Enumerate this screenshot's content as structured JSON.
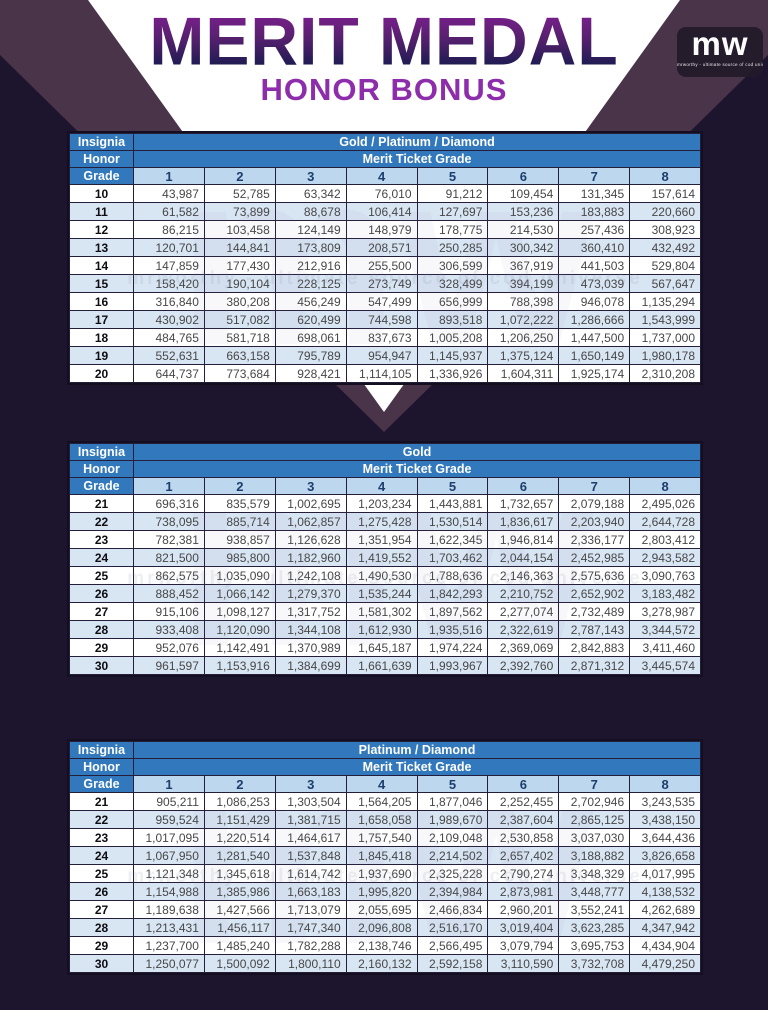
{
  "header": {
    "title": "MERIT MEDAL",
    "subtitle": "HONOR BONUS",
    "logo_text": "mw",
    "logo_tagline": "mrworthy - ultimate source of cod universe"
  },
  "labels": {
    "insignia": "Insignia",
    "honor": "Honor",
    "grade": "Grade",
    "merit_ticket_grade": "Merit Ticket Grade",
    "ticket_grades": [
      "1",
      "2",
      "3",
      "4",
      "5",
      "6",
      "7",
      "8"
    ]
  },
  "colors": {
    "page_background": "#1d142e",
    "corner_band": "#4a3449",
    "header_blue": "#3278bc",
    "column_header_blue": "#bdd7ee",
    "stripe_blue": "#d8e5f3",
    "title_gradient_top": "#7c1f8e",
    "title_gradient_bottom": "#1c1b50",
    "subtitle_purple": "#8e2dab"
  },
  "tables": [
    {
      "tier": "Gold / Platinum / Diamond",
      "rows": [
        [
          "10",
          "43,987",
          "52,785",
          "63,342",
          "76,010",
          "91,212",
          "109,454",
          "131,345",
          "157,614"
        ],
        [
          "11",
          "61,582",
          "73,899",
          "88,678",
          "106,414",
          "127,697",
          "153,236",
          "183,883",
          "220,660"
        ],
        [
          "12",
          "86,215",
          "103,458",
          "124,149",
          "148,979",
          "178,775",
          "214,530",
          "257,436",
          "308,923"
        ],
        [
          "13",
          "120,701",
          "144,841",
          "173,809",
          "208,571",
          "250,285",
          "300,342",
          "360,410",
          "432,492"
        ],
        [
          "14",
          "147,859",
          "177,430",
          "212,916",
          "255,500",
          "306,599",
          "367,919",
          "441,503",
          "529,804"
        ],
        [
          "15",
          "158,420",
          "190,104",
          "228,125",
          "273,749",
          "328,499",
          "394,199",
          "473,039",
          "567,647"
        ],
        [
          "16",
          "316,840",
          "380,208",
          "456,249",
          "547,499",
          "656,999",
          "788,398",
          "946,078",
          "1,135,294"
        ],
        [
          "17",
          "430,902",
          "517,082",
          "620,499",
          "744,598",
          "893,518",
          "1,072,222",
          "1,286,666",
          "1,543,999"
        ],
        [
          "18",
          "484,765",
          "581,718",
          "698,061",
          "837,673",
          "1,005,208",
          "1,206,250",
          "1,447,500",
          "1,737,000"
        ],
        [
          "19",
          "552,631",
          "663,158",
          "795,789",
          "954,947",
          "1,145,937",
          "1,375,124",
          "1,650,149",
          "1,980,178"
        ],
        [
          "20",
          "644,737",
          "773,684",
          "928,421",
          "1,114,105",
          "1,336,926",
          "1,604,311",
          "1,925,174",
          "2,310,208"
        ]
      ]
    },
    {
      "tier": "Gold",
      "rows": [
        [
          "21",
          "696,316",
          "835,579",
          "1,002,695",
          "1,203,234",
          "1,443,881",
          "1,732,657",
          "2,079,188",
          "2,495,026"
        ],
        [
          "22",
          "738,095",
          "885,714",
          "1,062,857",
          "1,275,428",
          "1,530,514",
          "1,836,617",
          "2,203,940",
          "2,644,728"
        ],
        [
          "23",
          "782,381",
          "938,857",
          "1,126,628",
          "1,351,954",
          "1,622,345",
          "1,946,814",
          "2,336,177",
          "2,803,412"
        ],
        [
          "24",
          "821,500",
          "985,800",
          "1,182,960",
          "1,419,552",
          "1,703,462",
          "2,044,154",
          "2,452,985",
          "2,943,582"
        ],
        [
          "25",
          "862,575",
          "1,035,090",
          "1,242,108",
          "1,490,530",
          "1,788,636",
          "2,146,363",
          "2,575,636",
          "3,090,763"
        ],
        [
          "26",
          "888,452",
          "1,066,142",
          "1,279,370",
          "1,535,244",
          "1,842,293",
          "2,210,752",
          "2,652,902",
          "3,183,482"
        ],
        [
          "27",
          "915,106",
          "1,098,127",
          "1,317,752",
          "1,581,302",
          "1,897,562",
          "2,277,074",
          "2,732,489",
          "3,278,987"
        ],
        [
          "28",
          "933,408",
          "1,120,090",
          "1,344,108",
          "1,612,930",
          "1,935,516",
          "2,322,619",
          "2,787,143",
          "3,344,572"
        ],
        [
          "29",
          "952,076",
          "1,142,491",
          "1,370,989",
          "1,645,187",
          "1,974,224",
          "2,369,069",
          "2,842,883",
          "3,411,460"
        ],
        [
          "30",
          "961,597",
          "1,153,916",
          "1,384,699",
          "1,661,639",
          "1,993,967",
          "2,392,760",
          "2,871,312",
          "3,445,574"
        ]
      ]
    },
    {
      "tier": "Platinum / Diamond",
      "rows": [
        [
          "21",
          "905,211",
          "1,086,253",
          "1,303,504",
          "1,564,205",
          "1,877,046",
          "2,252,455",
          "2,702,946",
          "3,243,535"
        ],
        [
          "22",
          "959,524",
          "1,151,429",
          "1,381,715",
          "1,658,058",
          "1,989,670",
          "2,387,604",
          "2,865,125",
          "3,438,150"
        ],
        [
          "23",
          "1,017,095",
          "1,220,514",
          "1,464,617",
          "1,757,540",
          "2,109,048",
          "2,530,858",
          "3,037,030",
          "3,644,436"
        ],
        [
          "24",
          "1,067,950",
          "1,281,540",
          "1,537,848",
          "1,845,418",
          "2,214,502",
          "2,657,402",
          "3,188,882",
          "3,826,658"
        ],
        [
          "25",
          "1,121,348",
          "1,345,618",
          "1,614,742",
          "1,937,690",
          "2,325,228",
          "2,790,274",
          "3,348,329",
          "4,017,995"
        ],
        [
          "26",
          "1,154,988",
          "1,385,986",
          "1,663,183",
          "1,995,820",
          "2,394,984",
          "2,873,981",
          "3,448,777",
          "4,138,532"
        ],
        [
          "27",
          "1,189,638",
          "1,427,566",
          "1,713,079",
          "2,055,695",
          "2,466,834",
          "2,960,201",
          "3,552,241",
          "4,262,689"
        ],
        [
          "28",
          "1,213,431",
          "1,456,117",
          "1,747,340",
          "2,096,808",
          "2,516,170",
          "3,019,404",
          "3,623,285",
          "4,347,942"
        ],
        [
          "29",
          "1,237,700",
          "1,485,240",
          "1,782,288",
          "2,138,746",
          "2,566,495",
          "3,079,794",
          "3,695,753",
          "4,434,904"
        ],
        [
          "30",
          "1,250,077",
          "1,500,092",
          "1,800,110",
          "2,160,132",
          "2,592,158",
          "3,110,590",
          "3,732,708",
          "4,479,250"
        ]
      ]
    }
  ]
}
